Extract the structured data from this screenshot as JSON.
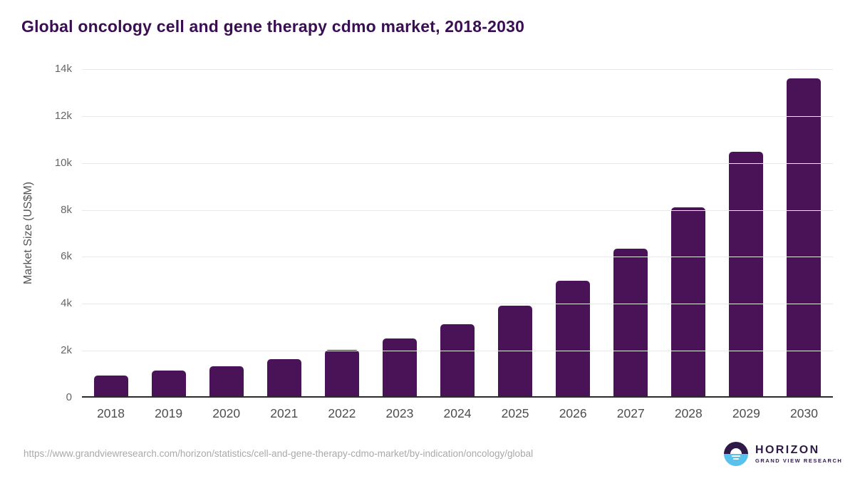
{
  "page": {
    "title": "Global oncology cell and gene therapy cdmo market, 2018-2030",
    "source_url": "https://www.grandviewresearch.com/horizon/statistics/cell-and-gene-therapy-cdmo-market/by-indication/oncology/global",
    "logo": {
      "name": "HORIZON",
      "subtitle": "GRAND VIEW RESEARCH"
    }
  },
  "chart_data": {
    "type": "bar",
    "title": "Global oncology cell and gene therapy cdmo market, 2018-2030",
    "categories": [
      "2018",
      "2019",
      "2020",
      "2021",
      "2022",
      "2023",
      "2024",
      "2025",
      "2026",
      "2027",
      "2028",
      "2029",
      "2030"
    ],
    "values": [
      870,
      1090,
      1280,
      1590,
      1980,
      2450,
      3060,
      3870,
      4910,
      6300,
      8060,
      10430,
      13550
    ],
    "xlabel": "",
    "ylabel": "Market Size (US$M)",
    "ylim": [
      0,
      14000
    ],
    "yticks": [
      {
        "value": 0,
        "label": "0"
      },
      {
        "value": 2000,
        "label": "2k"
      },
      {
        "value": 4000,
        "label": "4k"
      },
      {
        "value": 6000,
        "label": "6k"
      },
      {
        "value": 8000,
        "label": "8k"
      },
      {
        "value": 10000,
        "label": "10k"
      },
      {
        "value": 12000,
        "label": "12k"
      },
      {
        "value": 14000,
        "label": "14k"
      }
    ],
    "grid": "horizontal",
    "legend": false,
    "bar_color": "#4a1358"
  },
  "colors": {
    "title": "#3a0e53",
    "bar": "#4a1358",
    "gridline": "#e8e8e8",
    "axis_line": "#2b2b2b",
    "tick_label": "#666666",
    "x_label": "#4d4d4d",
    "source_url": "#a9a9a9",
    "logo_purple": "#2e1a47",
    "logo_blue": "#58c2ec"
  }
}
